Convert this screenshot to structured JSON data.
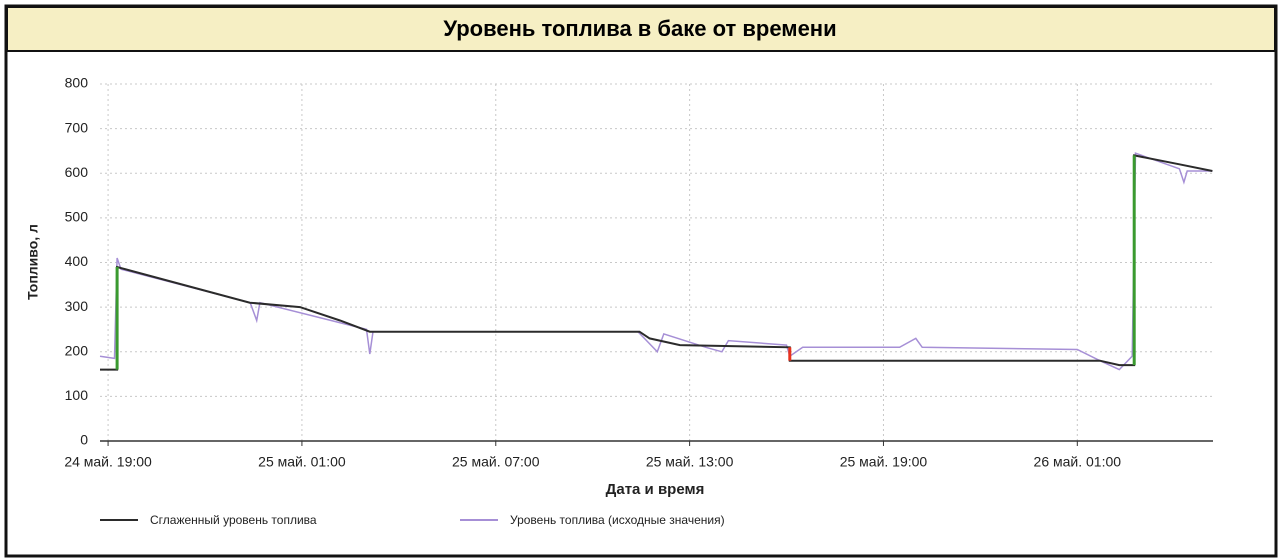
{
  "chart_data": {
    "type": "line",
    "title": "Уровень топлива в баке от времени",
    "y_label": "Топливо, л",
    "x_label": "Дата и время",
    "xlim": [
      -0.25,
      34.2
    ],
    "xticks": [
      {
        "value": 0,
        "label": "24 май. 19:00"
      },
      {
        "value": 6,
        "label": "25 май. 01:00"
      },
      {
        "value": 12,
        "label": "25 май. 07:00"
      },
      {
        "value": 18,
        "label": "25 май. 13:00"
      },
      {
        "value": 24,
        "label": "25 май. 19:00"
      },
      {
        "value": 30,
        "label": "26 май. 01:00"
      }
    ],
    "ylim": [
      0,
      800
    ],
    "yticks": [
      0,
      100,
      200,
      300,
      400,
      500,
      600,
      700,
      800
    ],
    "grid": true,
    "legend": "bottom",
    "series": [
      {
        "name": "Сглаженный уровень топлива",
        "color": "#2b2b2b",
        "x": [
          -0.25,
          0.28,
          0.28,
          4.39,
          5.94,
          7.18,
          8.1,
          16.45,
          16.76,
          17.7,
          21.1,
          21.1,
          30.7,
          31.3,
          31.76,
          31.76,
          33.16,
          34.18
        ],
        "values": [
          160,
          160,
          390,
          310,
          300,
          270,
          245,
          245,
          230,
          215,
          210,
          180,
          180,
          170,
          170,
          640,
          620,
          605
        ]
      },
      {
        "name": "Уровень топлива (исходные значения)",
        "color": "#a68fd6",
        "x": [
          -0.25,
          0.2,
          0.28,
          0.4,
          4.4,
          4.6,
          4.7,
          8.0,
          8.1,
          8.2,
          16.4,
          16.6,
          17.0,
          17.2,
          18.5,
          19.0,
          19.2,
          21.0,
          21.1,
          21.5,
          24.5,
          25.0,
          25.2,
          30.0,
          30.7,
          31.3,
          31.7,
          31.8,
          33.16,
          33.3,
          33.4,
          34.18
        ],
        "values": [
          190,
          185,
          410,
          385,
          310,
          270,
          310,
          250,
          195,
          245,
          245,
          230,
          200,
          240,
          210,
          200,
          225,
          215,
          190,
          210,
          210,
          230,
          210,
          205,
          180,
          160,
          190,
          645,
          610,
          580,
          605,
          605
        ]
      }
    ],
    "highlights": [
      {
        "color": "#3a9a2f",
        "x": [
          0.28,
          0.28
        ],
        "values": [
          160,
          390
        ]
      },
      {
        "color": "#e8321e",
        "x": [
          21.1,
          21.1
        ],
        "values": [
          210,
          180
        ]
      },
      {
        "color": "#3a9a2f",
        "x": [
          31.76,
          31.76
        ],
        "values": [
          170,
          640
        ]
      }
    ]
  }
}
